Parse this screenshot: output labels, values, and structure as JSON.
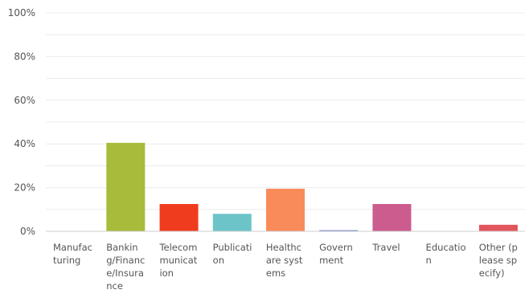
{
  "chart_data": {
    "type": "bar",
    "title": "",
    "xlabel": "",
    "ylabel": "",
    "ylim": [
      0,
      100
    ],
    "y_ticks": [
      "0%",
      "20%",
      "40%",
      "60%",
      "80%",
      "100%"
    ],
    "y_tick_values": [
      0,
      20,
      40,
      60,
      80,
      100
    ],
    "grid": true,
    "grid_minor_steps": 10,
    "categories": [
      "Manufacturing",
      "Banking/Finance/Insurance",
      "Telecommunication",
      "Publication",
      "Healthcare systems",
      "Government",
      "Travel",
      "Education",
      "Other (please specify)"
    ],
    "values": [
      0,
      40.5,
      12.5,
      8,
      19.5,
      0.5,
      12.5,
      0,
      3
    ],
    "colors": [
      "#6a8fc1",
      "#a8bb3a",
      "#f03c1e",
      "#6cc4c8",
      "#f98b5a",
      "#6a78c8",
      "#cc5c8e",
      "#b0b0b0",
      "#e2555d"
    ]
  }
}
